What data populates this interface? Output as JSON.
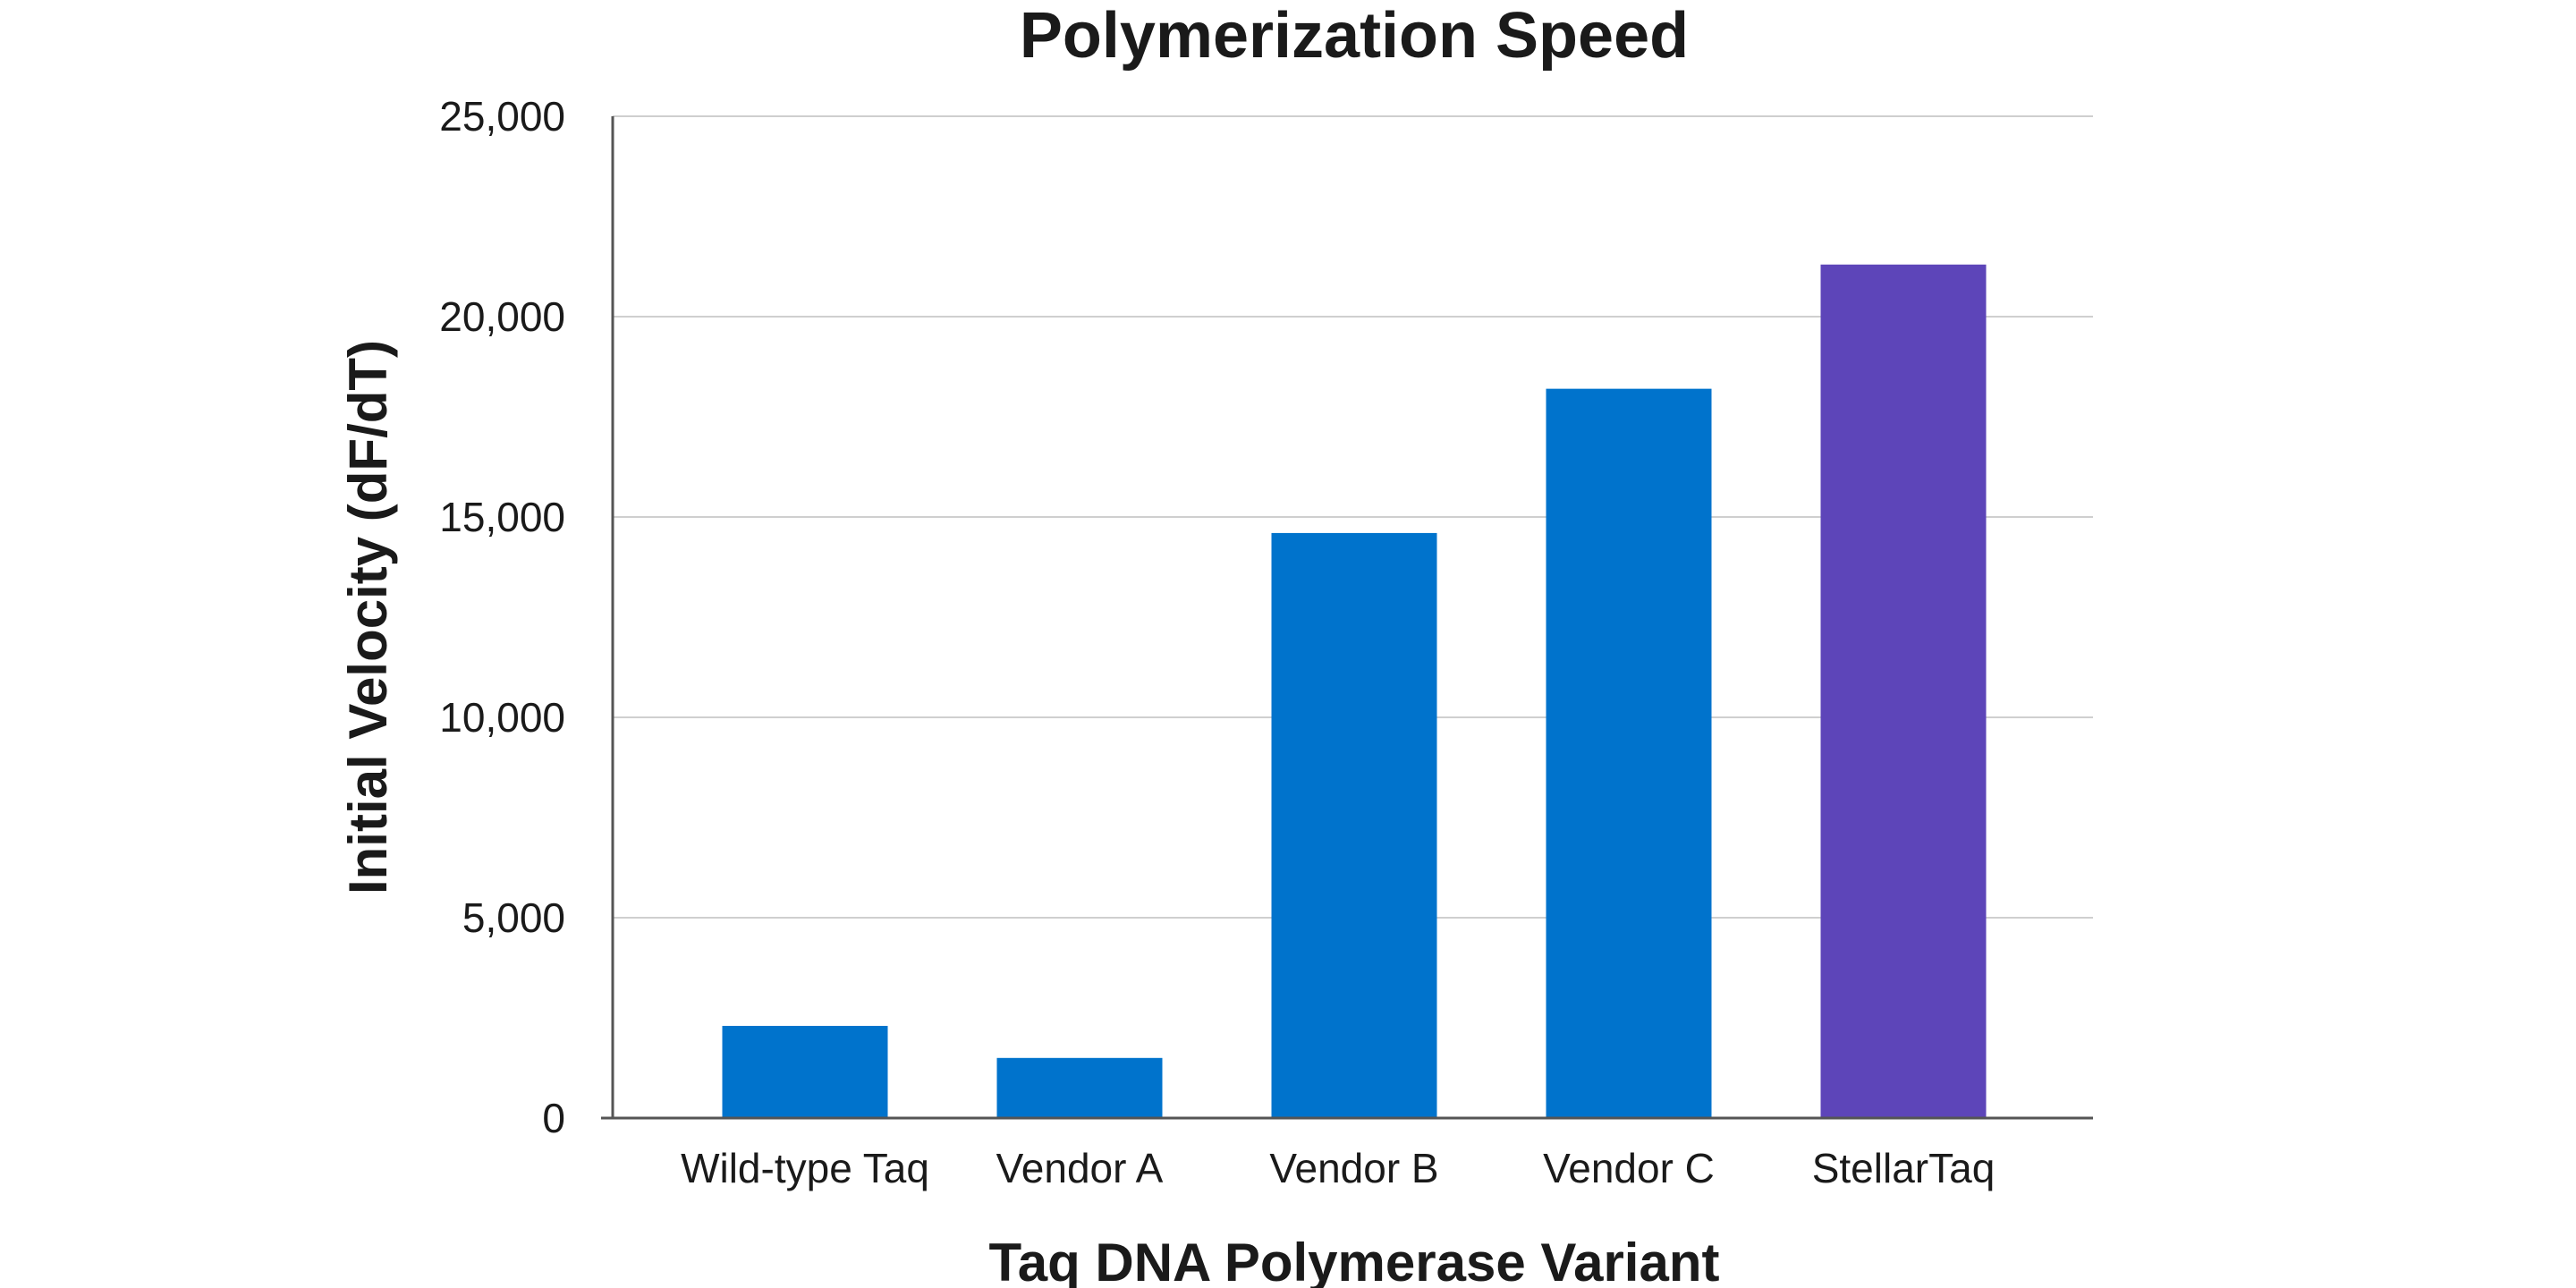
{
  "chart_data": {
    "type": "bar",
    "title": "Polymerization Speed",
    "xlabel": "Taq DNA Polymerase Variant",
    "ylabel": "Initial Velocity (dF/dT)",
    "categories": [
      "Wild-type Taq",
      "Vendor A",
      "Vendor B",
      "Vendor C",
      "StellarTaq"
    ],
    "values": [
      2300,
      1500,
      14600,
      18200,
      21300
    ],
    "bar_colors": [
      "#0073cc",
      "#0073cc",
      "#0073cc",
      "#0073cc",
      "#5d45b9"
    ],
    "ylim": [
      0,
      25000
    ],
    "yticks": [
      0,
      5000,
      10000,
      15000,
      20000,
      25000
    ],
    "ytick_labels": [
      "0",
      "5,000",
      "10,000",
      "15,000",
      "20,000",
      "25,000"
    ],
    "grid": true,
    "legend": "none"
  }
}
